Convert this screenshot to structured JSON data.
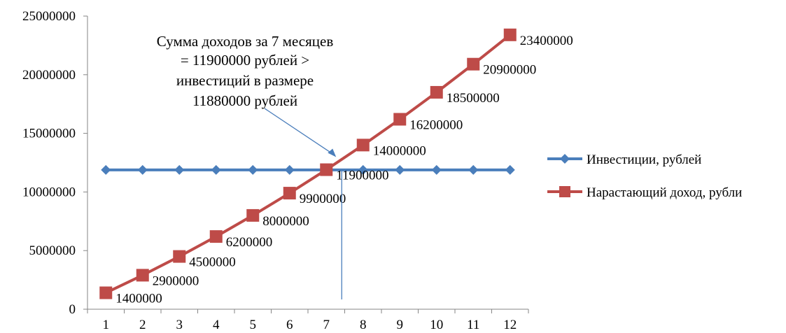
{
  "chart_data": {
    "type": "line",
    "categories": [
      1,
      2,
      3,
      4,
      5,
      6,
      7,
      8,
      9,
      10,
      11,
      12
    ],
    "ylim": [
      0,
      25000000
    ],
    "yticks": [
      0,
      5000000,
      10000000,
      15000000,
      20000000,
      25000000
    ],
    "grid": false,
    "legend_position": "right",
    "series": [
      {
        "name": "Инвестиции, рублей",
        "color": "#4a7ebb",
        "marker": "diamond",
        "values": [
          11880000,
          11880000,
          11880000,
          11880000,
          11880000,
          11880000,
          11880000,
          11880000,
          11880000,
          11880000,
          11880000,
          11880000
        ],
        "data_labels": false
      },
      {
        "name": "Нарастающий доход, рубли",
        "color": "#be4b48",
        "marker": "square",
        "values": [
          1400000,
          2900000,
          4500000,
          6200000,
          8000000,
          9900000,
          11900000,
          14000000,
          16200000,
          18500000,
          20900000,
          23400000
        ],
        "data_labels": true
      }
    ],
    "annotation": {
      "lines": [
        "Сумма доходов за 7 месяцев",
        "= 11900000 рублей >",
        "инвестиций в размере",
        "11880000 рублей"
      ]
    }
  }
}
